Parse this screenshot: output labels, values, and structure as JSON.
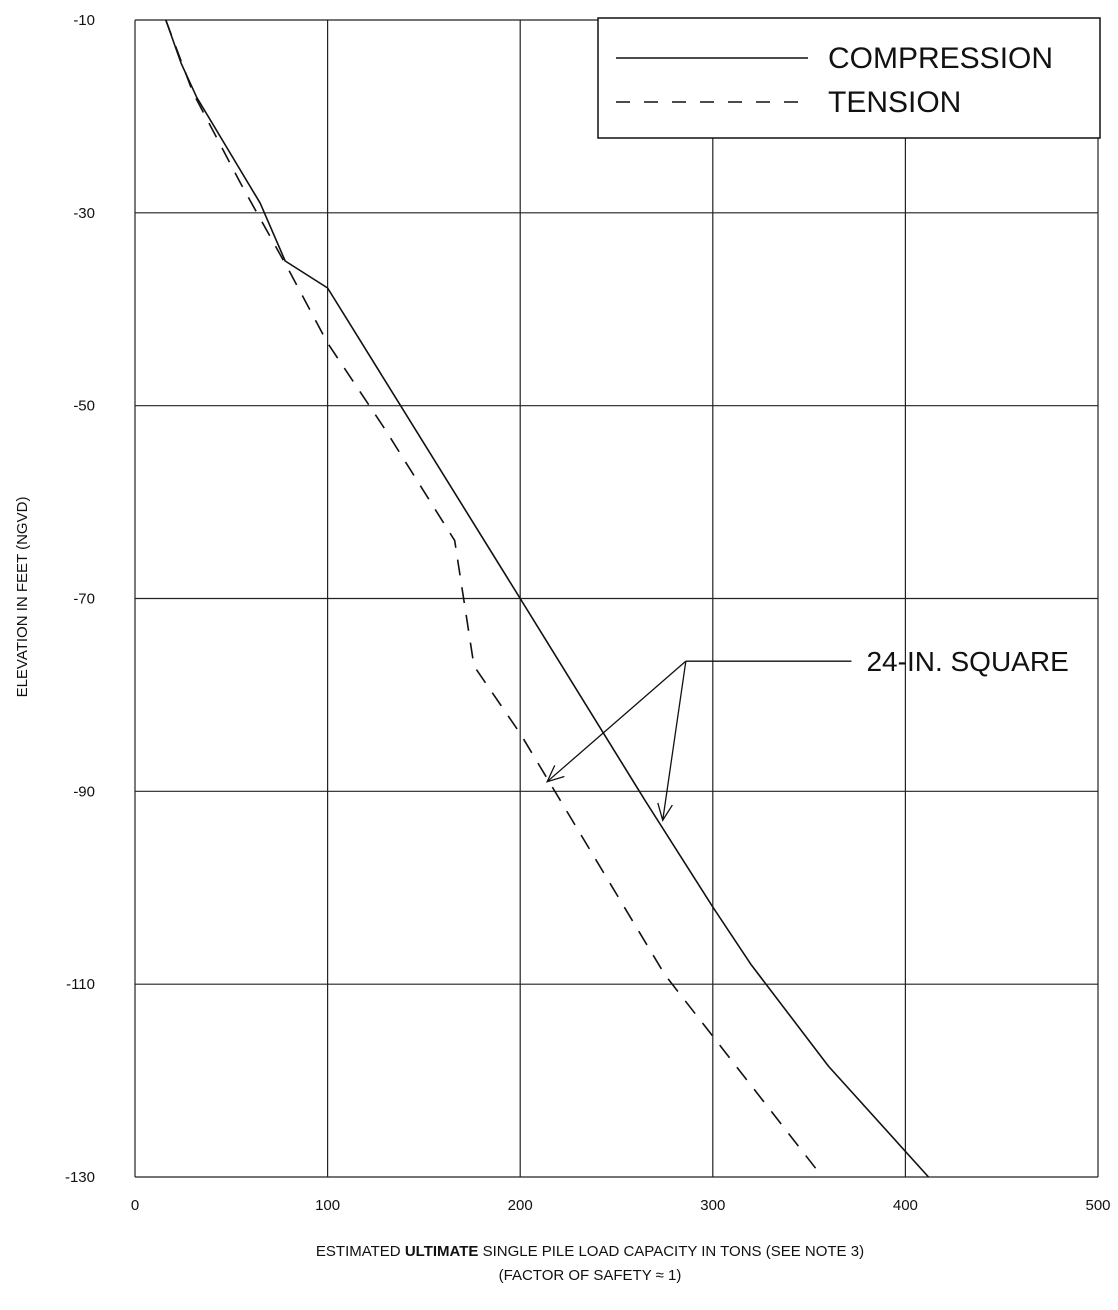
{
  "chart_data": {
    "type": "line",
    "title": "",
    "xlabel": "ESTIMATED ULTIMATE SINGLE PILE LOAD CAPACITY IN TONS (SEE NOTE 3)",
    "xlabel_parts": {
      "pre": "ESTIMATED ",
      "bold": "ULTIMATE",
      "post": " SINGLE PILE LOAD CAPACITY IN TONS (SEE NOTE 3)"
    },
    "xlabel_line2": "(FACTOR OF SAFETY ≈ 1)",
    "ylabel": "ELEVATION IN FEET (NGVD)",
    "xlim": [
      0,
      500
    ],
    "ylim": [
      -130,
      -10
    ],
    "x_ticks": [
      0,
      100,
      200,
      300,
      400,
      500
    ],
    "y_ticks": [
      -10,
      -30,
      -50,
      -70,
      -90,
      -110,
      -130
    ],
    "grid": true,
    "legend_position": "top-right",
    "series": [
      {
        "name": "COMPRESSION",
        "style": "solid",
        "color": "#111111",
        "points": [
          [
            16,
            -10
          ],
          [
            24,
            -14.5
          ],
          [
            32,
            -18
          ],
          [
            50,
            -24
          ],
          [
            65,
            -29
          ],
          [
            78,
            -35
          ],
          [
            100,
            -37.8
          ],
          [
            200,
            -70
          ],
          [
            265,
            -91
          ],
          [
            300,
            -102
          ],
          [
            320,
            -108
          ],
          [
            360,
            -118.5
          ],
          [
            412,
            -130
          ]
        ]
      },
      {
        "name": "TENSION",
        "style": "dashed",
        "color": "#111111",
        "points": [
          [
            16,
            -10
          ],
          [
            30,
            -17.5
          ],
          [
            55,
            -27
          ],
          [
            80,
            -36
          ],
          [
            100,
            -43.5
          ],
          [
            130,
            -52.5
          ],
          [
            166,
            -64
          ],
          [
            176,
            -77
          ],
          [
            200,
            -84
          ],
          [
            275,
            -109
          ],
          [
            355,
            -129.5
          ]
        ]
      }
    ],
    "annotations": [
      {
        "text": "24-IN. SQUARE",
        "line_from": [
          372,
          -76.5
        ],
        "line_to": [
          286,
          -76.5
        ],
        "arrows_to": [
          [
            214,
            -89
          ],
          [
            274,
            -93
          ]
        ]
      }
    ]
  }
}
